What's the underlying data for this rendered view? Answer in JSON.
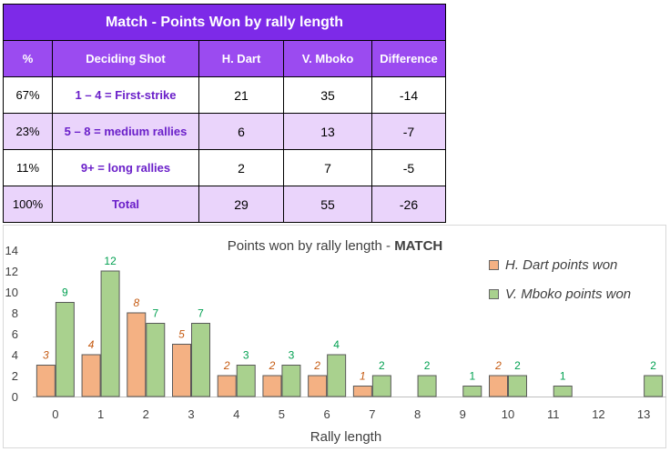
{
  "table": {
    "title": "Match - Points Won by rally length",
    "headers": [
      "%",
      "Deciding Shot",
      "H. Dart",
      "V. Mboko",
      "Difference"
    ],
    "rows": [
      {
        "pct": "67%",
        "shot": "1 – 4 = First-strike",
        "dart": "21",
        "mboko": "35",
        "diff": "-14"
      },
      {
        "pct": "23%",
        "shot": "5 – 8 = medium rallies",
        "dart": "6",
        "mboko": "13",
        "diff": "-7"
      },
      {
        "pct": "11%",
        "shot": "9+ = long rallies",
        "dart": "2",
        "mboko": "7",
        "diff": "-5"
      },
      {
        "pct": "100%",
        "shot": "Total",
        "dart": "29",
        "mboko": "55",
        "diff": "-26"
      }
    ]
  },
  "chart_data": {
    "type": "bar",
    "title": "Points won by rally length - ",
    "title_bold": "MATCH",
    "xlabel": "Rally length",
    "ylabel": "",
    "categories": [
      "0",
      "1",
      "2",
      "3",
      "4",
      "5",
      "6",
      "7",
      "8",
      "9",
      "10",
      "11",
      "12",
      "13"
    ],
    "yticks": [
      "0",
      "2",
      "4",
      "6",
      "8",
      "10",
      "12",
      "14"
    ],
    "ylim": [
      0,
      14
    ],
    "legend_position": "top-right",
    "grid": false,
    "series": [
      {
        "name": "H. Dart points won",
        "color": "#f4b183",
        "label_color": "#c55a11",
        "values": [
          3,
          4,
          8,
          5,
          2,
          2,
          2,
          1,
          0,
          0,
          2,
          0,
          0,
          0
        ],
        "labels": [
          "3",
          "4",
          "8",
          "5",
          "2",
          "2",
          "2",
          "1",
          "",
          "",
          "2",
          "",
          "",
          ""
        ]
      },
      {
        "name": "V. Mboko points won",
        "color": "#a9d18e",
        "label_color": "#00a050",
        "values": [
          9,
          12,
          7,
          7,
          3,
          3,
          4,
          2,
          2,
          1,
          2,
          1,
          0,
          2
        ],
        "labels": [
          "9",
          "12",
          "7",
          "7",
          "3",
          "3",
          "4",
          "2",
          "2",
          "1",
          "2",
          "1",
          "",
          "2"
        ]
      }
    ]
  }
}
